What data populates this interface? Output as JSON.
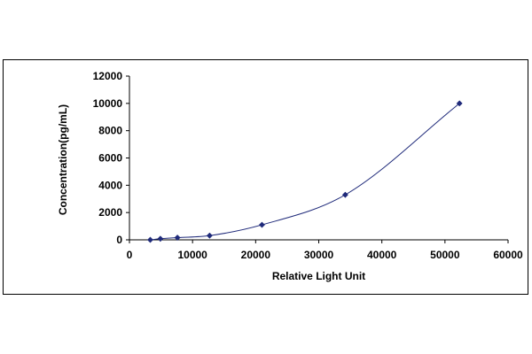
{
  "chart_data": {
    "type": "scatter",
    "title": "",
    "xlabel": "Relative Light Unit",
    "ylabel": "Concentration(pg/mL)",
    "xlim": [
      0,
      60000
    ],
    "ylim": [
      0,
      12000
    ],
    "xticks": [
      0,
      10000,
      20000,
      30000,
      40000,
      50000,
      60000
    ],
    "yticks": [
      0,
      2000,
      4000,
      6000,
      8000,
      10000,
      12000
    ],
    "xtick_labels": [
      "0",
      "10000",
      "20000",
      "30000",
      "40000",
      "50000",
      "60000"
    ],
    "ytick_labels": [
      "0",
      "2000",
      "4000",
      "6000",
      "8000",
      "10000",
      "12000"
    ],
    "grid": false,
    "legend": "none",
    "trendline": "smooth fitted curve through points",
    "series": [
      {
        "marker": "diamond",
        "color": "#1f2a7a",
        "x": [
          3300,
          4900,
          7600,
          12700,
          21000,
          34200,
          52300
        ],
        "y": [
          0,
          80,
          160,
          310,
          1100,
          3300,
          10000
        ]
      }
    ]
  }
}
